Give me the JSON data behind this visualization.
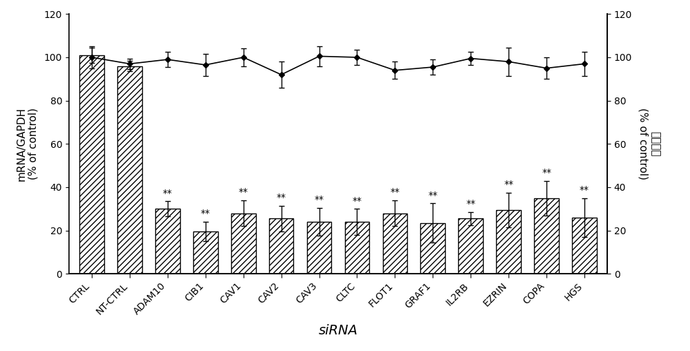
{
  "categories": [
    "CTRL",
    "NT-CTRL",
    "ADAM10",
    "CIB1",
    "CAV1",
    "CAV2",
    "CAV3",
    "CLTC",
    "FLOT1",
    "GRAF1",
    "IL2RB",
    "EZRIN",
    "COPA",
    "HGS"
  ],
  "bar_values": [
    101,
    96,
    30,
    19.5,
    28,
    25.5,
    24,
    24,
    28,
    23.5,
    25.5,
    29.5,
    35,
    26
  ],
  "bar_errors": [
    3.5,
    2.5,
    3.5,
    4.5,
    6,
    6,
    6.5,
    6,
    6,
    9,
    3,
    8,
    8,
    9
  ],
  "line_values": [
    100,
    97,
    99,
    96.5,
    100,
    92,
    100.5,
    100,
    94,
    95.5,
    99.5,
    98,
    95,
    97
  ],
  "line_errors": [
    5,
    2.5,
    3.5,
    5,
    4,
    6,
    4.5,
    3.5,
    4,
    3.5,
    3,
    6.5,
    5,
    5.5
  ],
  "show_stars": [
    false,
    false,
    true,
    true,
    true,
    true,
    true,
    true,
    true,
    true,
    true,
    true,
    true,
    true
  ],
  "ylabel_left": "mRNA/GAPDH\n(% of control)",
  "ylabel_right_line1": "细胞活性",
  "ylabel_right_line2": "(% of control)",
  "xlabel": "siRNA",
  "ylim": [
    0,
    120
  ],
  "yticks": [
    0,
    20,
    40,
    60,
    80,
    100,
    120
  ],
  "bar_color": "#ffffff",
  "bar_hatch": "////",
  "bar_edgecolor": "#000000",
  "line_color": "#000000",
  "line_marker": "D",
  "line_markersize": 4,
  "background_color": "#ffffff",
  "axis_fontsize": 11,
  "tick_fontsize": 10,
  "star_fontsize": 10,
  "xlabel_fontsize": 14,
  "bar_width": 0.65
}
